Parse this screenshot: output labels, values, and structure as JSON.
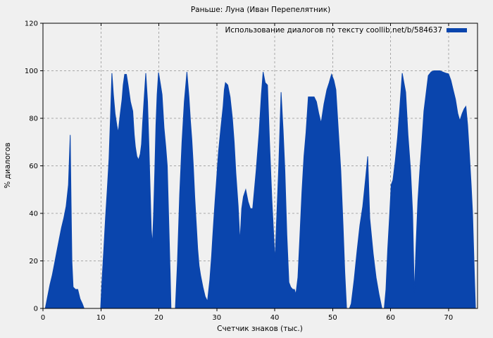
{
  "title": "Раньше: Луна (Иван Перепелятник)",
  "legend": {
    "label": "Использование диалогов по тексту coollib.net/b/584637"
  },
  "axes": {
    "x_label": "Счетчик знаков (тыс.)",
    "y_label": "% диалогов"
  },
  "colors": {
    "background": "#f0f0f0",
    "area": "#0a45ad",
    "grid": "#a8a8a8",
    "axis": "#000000",
    "text": "#000000"
  },
  "chart_data": {
    "type": "area",
    "title": "Раньше: Луна (Иван Перепелятник)",
    "xlabel": "Счетчик знаков (тыс.)",
    "ylabel": "% диалогов",
    "xlim": [
      0,
      75
    ],
    "ylim": [
      0,
      120
    ],
    "x_ticks": [
      0,
      10,
      20,
      30,
      40,
      50,
      60,
      70
    ],
    "y_ticks": [
      0,
      20,
      40,
      60,
      80,
      100,
      120
    ],
    "grid": true,
    "legend_position": "top-right",
    "series": [
      {
        "name": "Использование диалогов по тексту coollib.net/b/584637",
        "color": "#0a45ad",
        "points": [
          [
            0.4,
            0
          ],
          [
            0.8,
            5
          ],
          [
            1.2,
            10
          ],
          [
            1.6,
            14
          ],
          [
            2.0,
            19
          ],
          [
            2.4,
            24
          ],
          [
            2.8,
            29
          ],
          [
            3.2,
            34
          ],
          [
            3.6,
            38
          ],
          [
            4.0,
            43
          ],
          [
            4.4,
            52
          ],
          [
            4.7,
            73
          ],
          [
            4.85,
            45
          ],
          [
            5.0,
            20
          ],
          [
            5.2,
            9
          ],
          [
            5.6,
            8
          ],
          [
            6.0,
            8
          ],
          [
            6.4,
            4
          ],
          [
            6.8,
            2
          ],
          [
            7.1,
            0
          ],
          [
            8.0,
            0
          ],
          [
            9.0,
            0
          ],
          [
            9.95,
            0
          ],
          [
            10.2,
            12
          ],
          [
            10.5,
            25
          ],
          [
            10.8,
            38
          ],
          [
            11.1,
            50
          ],
          [
            11.4,
            63
          ],
          [
            11.65,
            80
          ],
          [
            11.9,
            99
          ],
          [
            12.15,
            90
          ],
          [
            12.45,
            82
          ],
          [
            12.75,
            77
          ],
          [
            13.0,
            74
          ],
          [
            13.35,
            82
          ],
          [
            13.65,
            88
          ],
          [
            13.85,
            94
          ],
          [
            14.1,
            98.5
          ],
          [
            14.4,
            98.5
          ],
          [
            14.7,
            94
          ],
          [
            15.1,
            87
          ],
          [
            15.5,
            83
          ],
          [
            15.75,
            73
          ],
          [
            15.95,
            68
          ],
          [
            16.2,
            64
          ],
          [
            16.5,
            62.5
          ],
          [
            16.8,
            65
          ],
          [
            17.0,
            69
          ],
          [
            17.2,
            78
          ],
          [
            17.45,
            88
          ],
          [
            17.75,
            99
          ],
          [
            18.05,
            87
          ],
          [
            18.3,
            68
          ],
          [
            18.5,
            50
          ],
          [
            18.7,
            33
          ],
          [
            18.9,
            27
          ],
          [
            19.1,
            40
          ],
          [
            19.3,
            58
          ],
          [
            19.5,
            77
          ],
          [
            19.7,
            90
          ],
          [
            19.95,
            99.3
          ],
          [
            20.3,
            94
          ],
          [
            20.55,
            90
          ],
          [
            20.9,
            76
          ],
          [
            21.2,
            68
          ],
          [
            21.45,
            60
          ],
          [
            21.7,
            38
          ],
          [
            21.95,
            15
          ],
          [
            22.1,
            0
          ],
          [
            22.5,
            0
          ],
          [
            22.85,
            0
          ],
          [
            23.2,
            19
          ],
          [
            23.6,
            48
          ],
          [
            24.0,
            70
          ],
          [
            24.4,
            87
          ],
          [
            24.85,
            99.5
          ],
          [
            25.2,
            89
          ],
          [
            25.45,
            79
          ],
          [
            25.7,
            71
          ],
          [
            25.95,
            60
          ],
          [
            26.2,
            47
          ],
          [
            26.45,
            36
          ],
          [
            26.7,
            25
          ],
          [
            26.95,
            18
          ],
          [
            27.2,
            14
          ],
          [
            27.6,
            9
          ],
          [
            28.0,
            5
          ],
          [
            28.4,
            3
          ],
          [
            28.8,
            12
          ],
          [
            29.1,
            22
          ],
          [
            29.3,
            30
          ],
          [
            29.5,
            38
          ],
          [
            29.7,
            45
          ],
          [
            29.9,
            52
          ],
          [
            30.1,
            59
          ],
          [
            30.3,
            66
          ],
          [
            30.7,
            76
          ],
          [
            31.1,
            85
          ],
          [
            31.3,
            92
          ],
          [
            31.5,
            95
          ],
          [
            31.9,
            94
          ],
          [
            32.3,
            89
          ],
          [
            32.7,
            80
          ],
          [
            33.0,
            70
          ],
          [
            33.3,
            57
          ],
          [
            33.7,
            43
          ],
          [
            34.0,
            28
          ],
          [
            34.3,
            42
          ],
          [
            34.6,
            47
          ],
          [
            35.0,
            50
          ],
          [
            35.4,
            45
          ],
          [
            35.8,
            42
          ],
          [
            36.2,
            42
          ],
          [
            36.8,
            58
          ],
          [
            37.3,
            74
          ],
          [
            37.7,
            90
          ],
          [
            38.0,
            99.5
          ],
          [
            38.35,
            95
          ],
          [
            38.75,
            94
          ],
          [
            39.1,
            70
          ],
          [
            39.5,
            46
          ],
          [
            40.05,
            20
          ],
          [
            40.4,
            42
          ],
          [
            40.7,
            60
          ],
          [
            41.1,
            91
          ],
          [
            41.45,
            75
          ],
          [
            41.75,
            58
          ],
          [
            42.1,
            31
          ],
          [
            42.45,
            11
          ],
          [
            42.75,
            9
          ],
          [
            43.1,
            8
          ],
          [
            43.4,
            8
          ],
          [
            43.65,
            6
          ],
          [
            44.0,
            13
          ],
          [
            44.35,
            31
          ],
          [
            44.7,
            49
          ],
          [
            45.05,
            64
          ],
          [
            45.4,
            74
          ],
          [
            45.8,
            89
          ],
          [
            46.3,
            89
          ],
          [
            46.8,
            89
          ],
          [
            47.2,
            87
          ],
          [
            47.6,
            82
          ],
          [
            48.0,
            78
          ],
          [
            48.5,
            86
          ],
          [
            49.0,
            92
          ],
          [
            49.4,
            95
          ],
          [
            49.8,
            98.5
          ],
          [
            50.2,
            96
          ],
          [
            50.55,
            92
          ],
          [
            51.0,
            74
          ],
          [
            51.4,
            58
          ],
          [
            51.8,
            35
          ],
          [
            52.1,
            15
          ],
          [
            52.4,
            0
          ],
          [
            52.9,
            0
          ],
          [
            53.2,
            2
          ],
          [
            53.7,
            12
          ],
          [
            54.2,
            24
          ],
          [
            54.7,
            35
          ],
          [
            55.2,
            43
          ],
          [
            55.7,
            55
          ],
          [
            56.05,
            64
          ],
          [
            56.4,
            38
          ],
          [
            57.0,
            23
          ],
          [
            57.5,
            13
          ],
          [
            58.0,
            6
          ],
          [
            58.5,
            0
          ],
          [
            58.9,
            0
          ],
          [
            59.2,
            8
          ],
          [
            59.5,
            25
          ],
          [
            59.8,
            38
          ],
          [
            60.1,
            52
          ],
          [
            60.4,
            54
          ],
          [
            60.8,
            62
          ],
          [
            61.2,
            72
          ],
          [
            61.6,
            85
          ],
          [
            62.0,
            99
          ],
          [
            62.3,
            95
          ],
          [
            62.6,
            91
          ],
          [
            63.0,
            73
          ],
          [
            63.45,
            58
          ],
          [
            63.8,
            40
          ],
          [
            64.1,
            6
          ],
          [
            64.4,
            27
          ],
          [
            64.7,
            45
          ],
          [
            65.05,
            58
          ],
          [
            65.4,
            70
          ],
          [
            65.75,
            83
          ],
          [
            66.1,
            90
          ],
          [
            66.5,
            98
          ],
          [
            67.0,
            99.5
          ],
          [
            67.5,
            100
          ],
          [
            68.0,
            100
          ],
          [
            68.5,
            100
          ],
          [
            69.0,
            99.5
          ],
          [
            69.5,
            99
          ],
          [
            70.0,
            98.7
          ],
          [
            70.4,
            96
          ],
          [
            70.8,
            92
          ],
          [
            71.2,
            88
          ],
          [
            71.6,
            82
          ],
          [
            71.95,
            79
          ],
          [
            72.35,
            82
          ],
          [
            72.7,
            84
          ],
          [
            73.0,
            85
          ],
          [
            73.3,
            77
          ],
          [
            73.6,
            65
          ],
          [
            73.9,
            52
          ],
          [
            74.15,
            40
          ],
          [
            74.45,
            15
          ],
          [
            74.65,
            0
          ]
        ]
      }
    ]
  }
}
